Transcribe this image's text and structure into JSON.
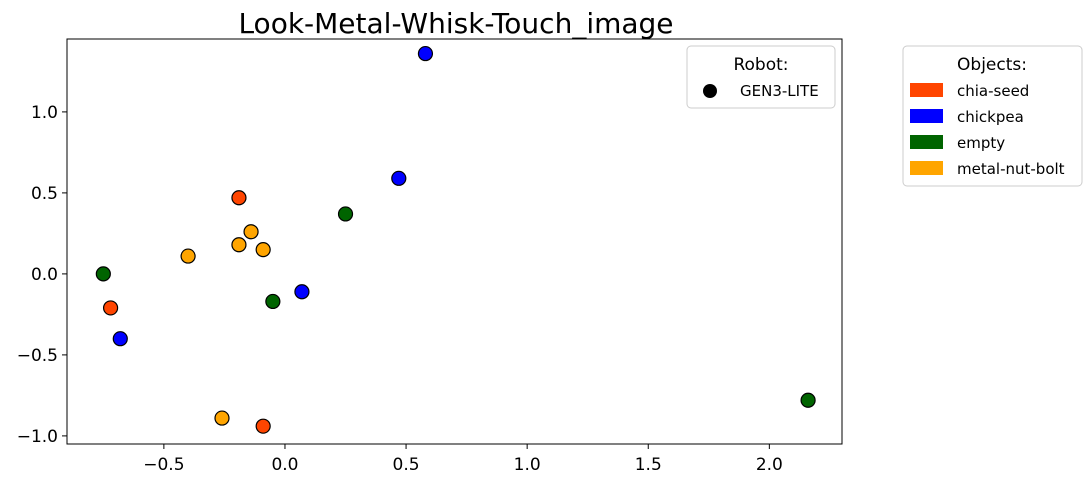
{
  "chart_data": {
    "type": "scatter",
    "title": "Look-Metal-Whisk-Touch_image",
    "xlabel": "",
    "ylabel": "",
    "xlim": [
      -0.9,
      2.3
    ],
    "ylim": [
      -1.05,
      1.45
    ],
    "x_ticks": [
      -0.5,
      0.0,
      0.5,
      1.0,
      1.5,
      2.0
    ],
    "x_tick_labels": [
      "−0.5",
      "0.0",
      "0.5",
      "1.0",
      "1.5",
      "2.0"
    ],
    "y_ticks": [
      -1.0,
      -0.5,
      0.0,
      0.5,
      1.0
    ],
    "y_tick_labels": [
      "−1.0",
      "−0.5",
      "0.0",
      "0.5",
      "1.0"
    ],
    "grid": false,
    "series": [
      {
        "name": "chia-seed",
        "color": "#FF4500",
        "points": [
          {
            "x": -0.19,
            "y": 0.47
          },
          {
            "x": -0.72,
            "y": -0.21
          },
          {
            "x": -0.09,
            "y": -0.94
          }
        ]
      },
      {
        "name": "chickpea",
        "color": "#0000FF",
        "points": [
          {
            "x": 0.58,
            "y": 1.36
          },
          {
            "x": 0.47,
            "y": 0.59
          },
          {
            "x": 0.07,
            "y": -0.11
          },
          {
            "x": -0.68,
            "y": -0.4
          }
        ]
      },
      {
        "name": "empty",
        "color": "#006400",
        "points": [
          {
            "x": 0.25,
            "y": 0.37
          },
          {
            "x": -0.75,
            "y": 0.0
          },
          {
            "x": -0.05,
            "y": -0.17
          },
          {
            "x": 2.16,
            "y": -0.78
          }
        ]
      },
      {
        "name": "metal-nut-bolt",
        "color": "#FFA500",
        "points": [
          {
            "x": -0.14,
            "y": 0.26
          },
          {
            "x": -0.19,
            "y": 0.18
          },
          {
            "x": -0.09,
            "y": 0.15
          },
          {
            "x": -0.4,
            "y": 0.11
          },
          {
            "x": -0.26,
            "y": -0.89
          }
        ]
      }
    ],
    "legend_robot": {
      "title": "Robot:",
      "placement": "top-right-inside",
      "entries": [
        {
          "label": "GEN3-LITE",
          "color": "#000000",
          "marker": "circle"
        }
      ]
    },
    "legend_objects": {
      "title": "Objects:",
      "placement": "outside-right",
      "entries": [
        {
          "label": "chia-seed",
          "color": "#FF4500"
        },
        {
          "label": "chickpea",
          "color": "#0000FF"
        },
        {
          "label": "empty",
          "color": "#006400"
        },
        {
          "label": "metal-nut-bolt",
          "color": "#FFA500"
        }
      ]
    }
  }
}
